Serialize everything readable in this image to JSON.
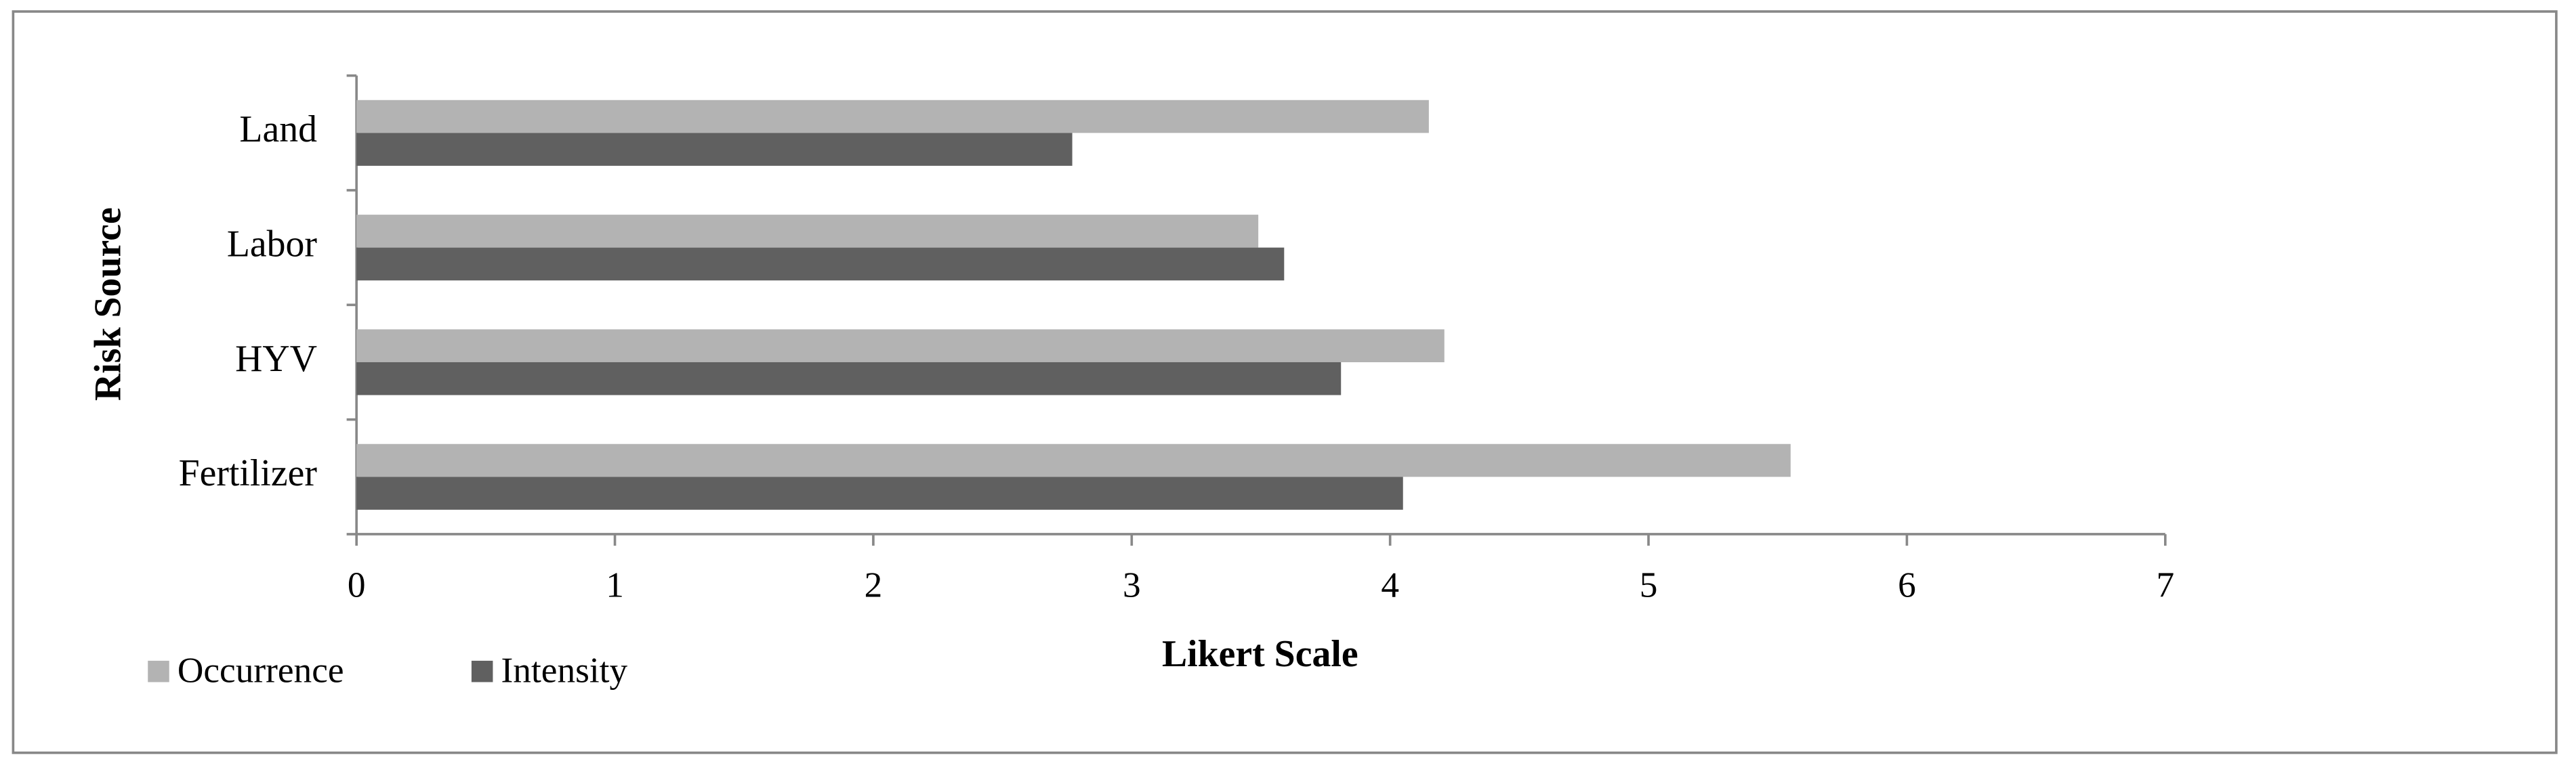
{
  "chart_data": {
    "type": "barh",
    "categories": [
      "Land",
      "Labor",
      "HYV",
      "Fertilizer"
    ],
    "series": [
      {
        "name": "Occurrence",
        "color": "#b3b3b3",
        "values": [
          4.15,
          3.49,
          4.21,
          5.55
        ]
      },
      {
        "name": "Intensity",
        "color": "#606060",
        "values": [
          2.77,
          3.59,
          3.81,
          4.05
        ]
      }
    ],
    "xlabel": "Likert Scale",
    "ylabel": "Risk Source",
    "xlim": [
      0,
      7
    ],
    "xticks": [
      0,
      1,
      2,
      3,
      4,
      5,
      6,
      7
    ],
    "legend": "bottom-left"
  }
}
